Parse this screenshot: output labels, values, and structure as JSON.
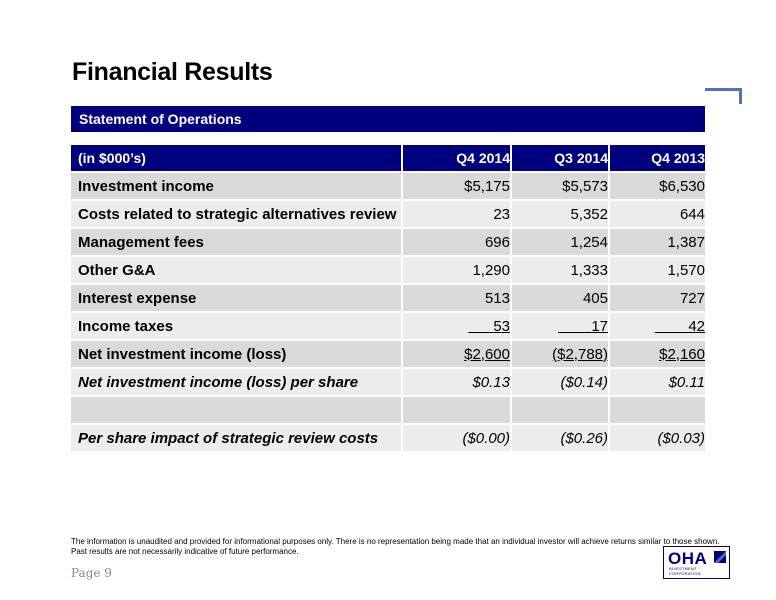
{
  "title": "Financial Results",
  "section": "Statement of Operations",
  "table": {
    "headers": [
      "(in $000’s)",
      "Q4 2014",
      "Q3 2014",
      "Q4 2013"
    ],
    "rows": [
      {
        "label": "Investment income",
        "values": [
          "$5,175",
          "$5,573",
          "$6,530"
        ]
      },
      {
        "label": "Costs related to strategic alternatives review",
        "values": [
          "23",
          "5,352",
          "644"
        ]
      },
      {
        "label": "Management fees",
        "values": [
          "696",
          "1,254",
          "1,387"
        ]
      },
      {
        "label": "Other G&A",
        "values": [
          "1,290",
          "1,333",
          "1,570"
        ]
      },
      {
        "label": "Interest expense",
        "values": [
          "513",
          "405",
          "727"
        ]
      },
      {
        "label": "Income taxes",
        "values": [
          "53",
          "17",
          "42"
        ]
      },
      {
        "label": "Net investment income (loss)",
        "values": [
          "$2,600",
          "($2,788)",
          "$2,160"
        ]
      },
      {
        "label": "Net investment income (loss) per share",
        "values": [
          "$0.13",
          "($0.14)",
          "$0.11"
        ]
      },
      {
        "label": "",
        "values": [
          "",
          "",
          ""
        ]
      },
      {
        "label": "Per share impact of strategic review costs",
        "values": [
          "($0.00)",
          "($0.26)",
          "($0.03)"
        ]
      }
    ]
  },
  "footer": {
    "disclaimer": "The information is unaudited and provided for informational purposes only. There is no representation being made that an individual investor will achieve returns similar to those shown. Past results are not necessarily indicative of future performance.",
    "page": "Page 9"
  },
  "logo": {
    "text": "OHA",
    "subtext": "INVESTMENT CORPORATION",
    "color": "#00007f",
    "icon": "flag-icon"
  },
  "colors": {
    "header_bg": "#00007f",
    "row_dark": "#d9d9d9",
    "row_light": "#ececec",
    "accent_line": "#4f74b0"
  }
}
